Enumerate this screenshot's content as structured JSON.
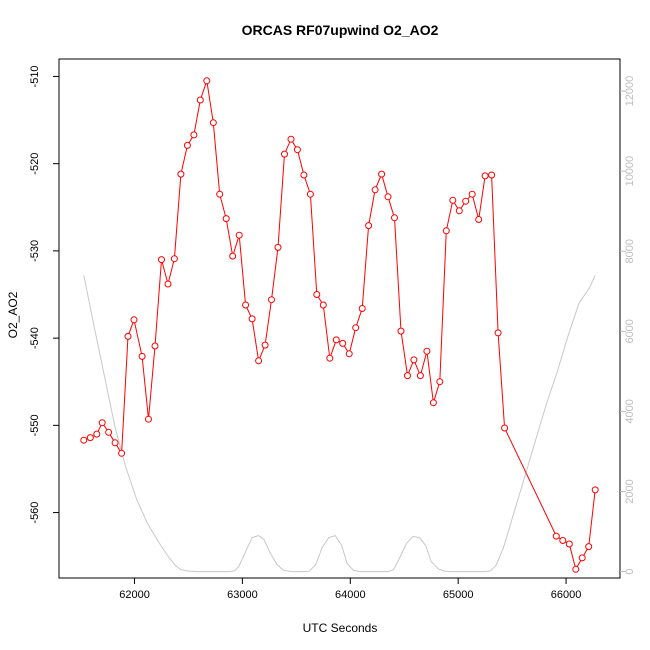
{
  "chart_data": {
    "type": "line",
    "title": "ORCAS RF07upwind O2_AO2",
    "xlabel": "UTC Seconds",
    "ylabel": "O2_AO2",
    "xlim": [
      61300,
      66500
    ],
    "ylim": [
      -567.5,
      -508
    ],
    "y2lim": [
      -160,
      12800
    ],
    "colors": {
      "primary": "#ff0000",
      "secondary": "#c8c8c8",
      "frame": "#000000",
      "right_axis": "#bdbdbd"
    },
    "x_ticks": [
      {
        "value": 62000,
        "label": "62000"
      },
      {
        "value": 63000,
        "label": "63000"
      },
      {
        "value": 64000,
        "label": "64000"
      },
      {
        "value": 65000,
        "label": "65000"
      },
      {
        "value": 66000,
        "label": "66000"
      }
    ],
    "y_ticks": [
      {
        "value": -510,
        "label": "-510"
      },
      {
        "value": -520,
        "label": "-520"
      },
      {
        "value": -530,
        "label": "-530"
      },
      {
        "value": -540,
        "label": "-540"
      },
      {
        "value": -550,
        "label": "-550"
      },
      {
        "value": -560,
        "label": "-560"
      }
    ],
    "y2_ticks": [
      {
        "value": 0,
        "label": "0"
      },
      {
        "value": 2000,
        "label": "2000"
      },
      {
        "value": 4000,
        "label": "4000"
      },
      {
        "value": 6000,
        "label": "6000"
      },
      {
        "value": 8000,
        "label": "8000"
      },
      {
        "value": 10000,
        "label": "10000"
      },
      {
        "value": 12000,
        "label": "12000"
      }
    ],
    "series": [
      {
        "axis": "left",
        "style": "line+markers",
        "x": [
          61530,
          61590,
          61650,
          61700,
          61760,
          61820,
          61880,
          61940,
          61995,
          62070,
          62130,
          62190,
          62250,
          62310,
          62370,
          62430,
          62490,
          62550,
          62610,
          62670,
          62730,
          62790,
          62850,
          62910,
          62970,
          63030,
          63090,
          63150,
          63210,
          63270,
          63330,
          63390,
          63450,
          63510,
          63570,
          63630,
          63690,
          63750,
          63810,
          63870,
          63930,
          63990,
          64050,
          64110,
          64170,
          64230,
          64290,
          64350,
          64410,
          64470,
          64530,
          64590,
          64650,
          64710,
          64770,
          64830,
          64890,
          64950,
          65010,
          65070,
          65130,
          65190,
          65250,
          65310,
          65370,
          65430,
          65910,
          65970,
          66030,
          66090,
          66150,
          66210,
          66270
        ],
        "y": [
          -551.7,
          -551.4,
          -551.0,
          -549.7,
          -550.8,
          -552.0,
          -553.2,
          -539.8,
          -537.9,
          -542.1,
          -549.3,
          -540.9,
          -531.0,
          -533.8,
          -530.9,
          -521.2,
          -517.9,
          -516.7,
          -512.7,
          -510.5,
          -515.3,
          -523.5,
          -526.3,
          -530.6,
          -528.2,
          -536.2,
          -537.8,
          -542.6,
          -540.8,
          -535.6,
          -529.6,
          -518.9,
          -517.2,
          -518.4,
          -521.3,
          -523.5,
          -535.0,
          -536.2,
          -542.3,
          -540.2,
          -540.6,
          -541.8,
          -538.8,
          -536.6,
          -527.1,
          -523.0,
          -521.2,
          -523.8,
          -526.2,
          -539.2,
          -544.3,
          -542.5,
          -544.3,
          -541.5,
          -547.4,
          -545.0,
          -527.7,
          -524.2,
          -525.4,
          -524.3,
          -523.5,
          -526.4,
          -521.4,
          -521.3,
          -539.4,
          -550.3,
          -562.7,
          -563.2,
          -563.6,
          -566.5,
          -565.2,
          -563.9,
          -557.4
        ]
      },
      {
        "axis": "right",
        "style": "line",
        "x": [
          61530,
          61620,
          61720,
          61820,
          61920,
          62020,
          62120,
          62220,
          62320,
          62380,
          62430,
          62480,
          62520,
          62600,
          62700,
          62800,
          62880,
          62930,
          62970,
          63030,
          63090,
          63150,
          63200,
          63260,
          63320,
          63380,
          63470,
          63570,
          63620,
          63680,
          63740,
          63800,
          63860,
          63920,
          63970,
          64030,
          64090,
          64160,
          64260,
          64350,
          64400,
          64450,
          64520,
          64580,
          64640,
          64700,
          64750,
          64820,
          64880,
          64940,
          65050,
          65150,
          65250,
          65300,
          65350,
          65420,
          65520,
          65620,
          65720,
          65820,
          65920,
          66020,
          66120,
          66220,
          66270
        ],
        "y": [
          7400,
          6200,
          4900,
          3600,
          2600,
          1800,
          1200,
          750,
          350,
          150,
          50,
          20,
          10,
          0,
          0,
          0,
          0,
          20,
          150,
          500,
          850,
          900,
          800,
          450,
          180,
          30,
          0,
          0,
          10,
          180,
          600,
          850,
          900,
          650,
          200,
          30,
          0,
          0,
          0,
          0,
          40,
          300,
          700,
          880,
          850,
          650,
          250,
          60,
          10,
          0,
          0,
          0,
          0,
          20,
          150,
          600,
          1500,
          2400,
          3300,
          4200,
          5000,
          5900,
          6700,
          7100,
          7400
        ]
      }
    ]
  }
}
